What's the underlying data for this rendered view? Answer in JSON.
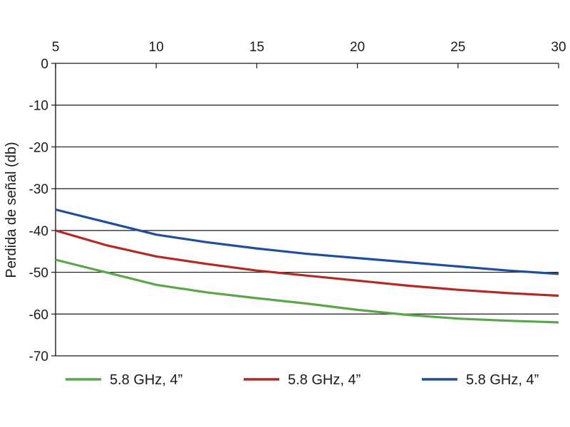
{
  "chart_data": {
    "type": "line",
    "title": "",
    "xlabel": "",
    "ylabel": "Perdida de señal (db)",
    "x_axis_position": "top",
    "xlim": [
      5,
      30
    ],
    "ylim": [
      -70,
      0
    ],
    "x_ticks": [
      5,
      10,
      15,
      20,
      25,
      30
    ],
    "y_ticks": [
      0,
      -10,
      -20,
      -30,
      -40,
      -50,
      -60,
      -70
    ],
    "x_tick_labels": [
      "5",
      "10",
      "15",
      "20",
      "25",
      "30"
    ],
    "y_tick_labels": [
      "0",
      "-10",
      "-20",
      "-30",
      "-40",
      "-50",
      "-60",
      "-70"
    ],
    "grid": "horizontal",
    "legend_position": "bottom",
    "x": [
      5,
      7.5,
      10,
      12.5,
      15,
      17.5,
      20,
      22.5,
      25,
      27.5,
      30
    ],
    "series": [
      {
        "name": "5.8 GHz, 4”",
        "color": "#5aa64a",
        "values": [
          -47,
          -50,
          -53,
          -54.8,
          -56.2,
          -57.5,
          -59,
          -60.2,
          -61.1,
          -61.6,
          -62
        ]
      },
      {
        "name": "5.8 GHz, 4”",
        "color": "#b22a25",
        "values": [
          -40,
          -43.5,
          -46.2,
          -48,
          -49.6,
          -50.8,
          -52,
          -53.2,
          -54.2,
          -55,
          -55.6
        ]
      },
      {
        "name": "5.8 GHz, 4”",
        "color": "#1f4f9c",
        "values": [
          -35,
          -38,
          -41,
          -42.8,
          -44.3,
          -45.6,
          -46.6,
          -47.6,
          -48.6,
          -49.6,
          -50.4
        ]
      }
    ]
  }
}
